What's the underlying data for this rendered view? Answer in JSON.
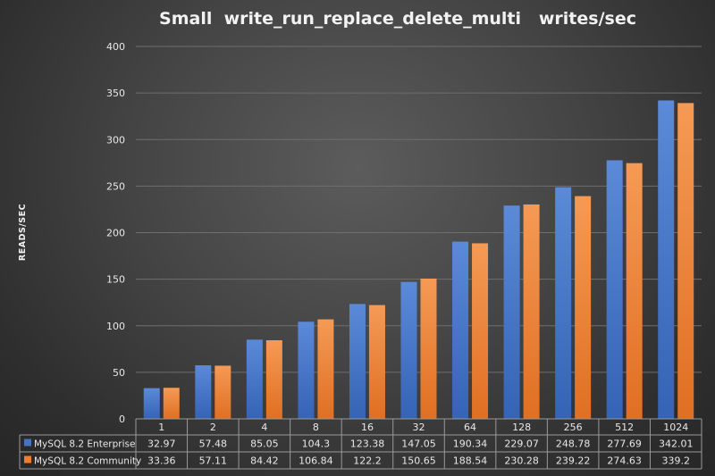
{
  "chart_data": {
    "type": "bar",
    "title": "Small  write_run_replace_delete_multi   writes/sec",
    "ylabel": "READS/SEC",
    "xlabel": "",
    "categories": [
      "1",
      "2",
      "4",
      "8",
      "16",
      "32",
      "64",
      "128",
      "256",
      "512",
      "1024"
    ],
    "ylim": [
      0,
      400
    ],
    "yticks": [
      0,
      50,
      100,
      150,
      200,
      250,
      300,
      350,
      400
    ],
    "grid": true,
    "legend": "data-table-bottom",
    "series": [
      {
        "name": "MySQL 8.2 Enterprise",
        "color": "#4472c4",
        "values": [
          32.97,
          57.48,
          85.05,
          104.3,
          123.38,
          147.05,
          190.34,
          229.07,
          248.78,
          277.69,
          342.01
        ]
      },
      {
        "name": "MySQL 8.2 Community",
        "color": "#ed7d31",
        "values": [
          33.36,
          57.11,
          84.42,
          106.84,
          122.2,
          150.65,
          188.54,
          230.28,
          239.22,
          274.63,
          339.2
        ]
      }
    ]
  }
}
